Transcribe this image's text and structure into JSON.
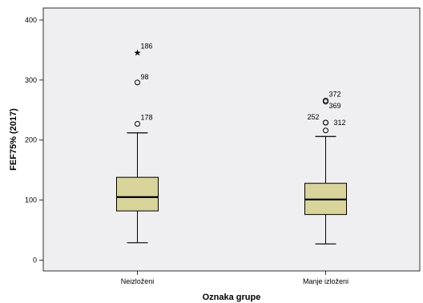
{
  "chart_data": {
    "type": "boxplot",
    "xlabel": "Oznaka grupe",
    "ylabel": "FEF75% (2017)",
    "ylim": [
      -18,
      420
    ],
    "yticks": [
      0,
      100,
      200,
      300,
      400
    ],
    "categories": [
      "Neizloženi",
      "Manje izloženi"
    ],
    "box_color": "#d8d49a",
    "background_color": "#efeff1",
    "grid": false,
    "boxes": [
      {
        "name": "Neizloženi",
        "whisker_low": 29,
        "q1": 82,
        "median": 105,
        "q3": 138,
        "whisker_high": 212,
        "outliers": [
          {
            "label": "178",
            "value": 227,
            "marker": "circle"
          },
          {
            "label": "98",
            "value": 296,
            "marker": "circle"
          },
          {
            "label": "186",
            "value": 346,
            "marker": "star"
          }
        ]
      },
      {
        "name": "Manje izloženi",
        "whisker_low": 27,
        "q1": 76,
        "median": 101,
        "q3": 128,
        "whisker_high": 206,
        "outliers": [
          {
            "label": "",
            "value": 216,
            "marker": "circle"
          },
          {
            "label": "252",
            "value": 229,
            "marker": "circle"
          },
          {
            "label": "372",
            "value": 266,
            "marker": "circle"
          },
          {
            "label": "369",
            "value": 264,
            "marker": "circle"
          },
          {
            "label": "312",
            "value": 229,
            "marker": "circle"
          }
        ]
      }
    ]
  }
}
